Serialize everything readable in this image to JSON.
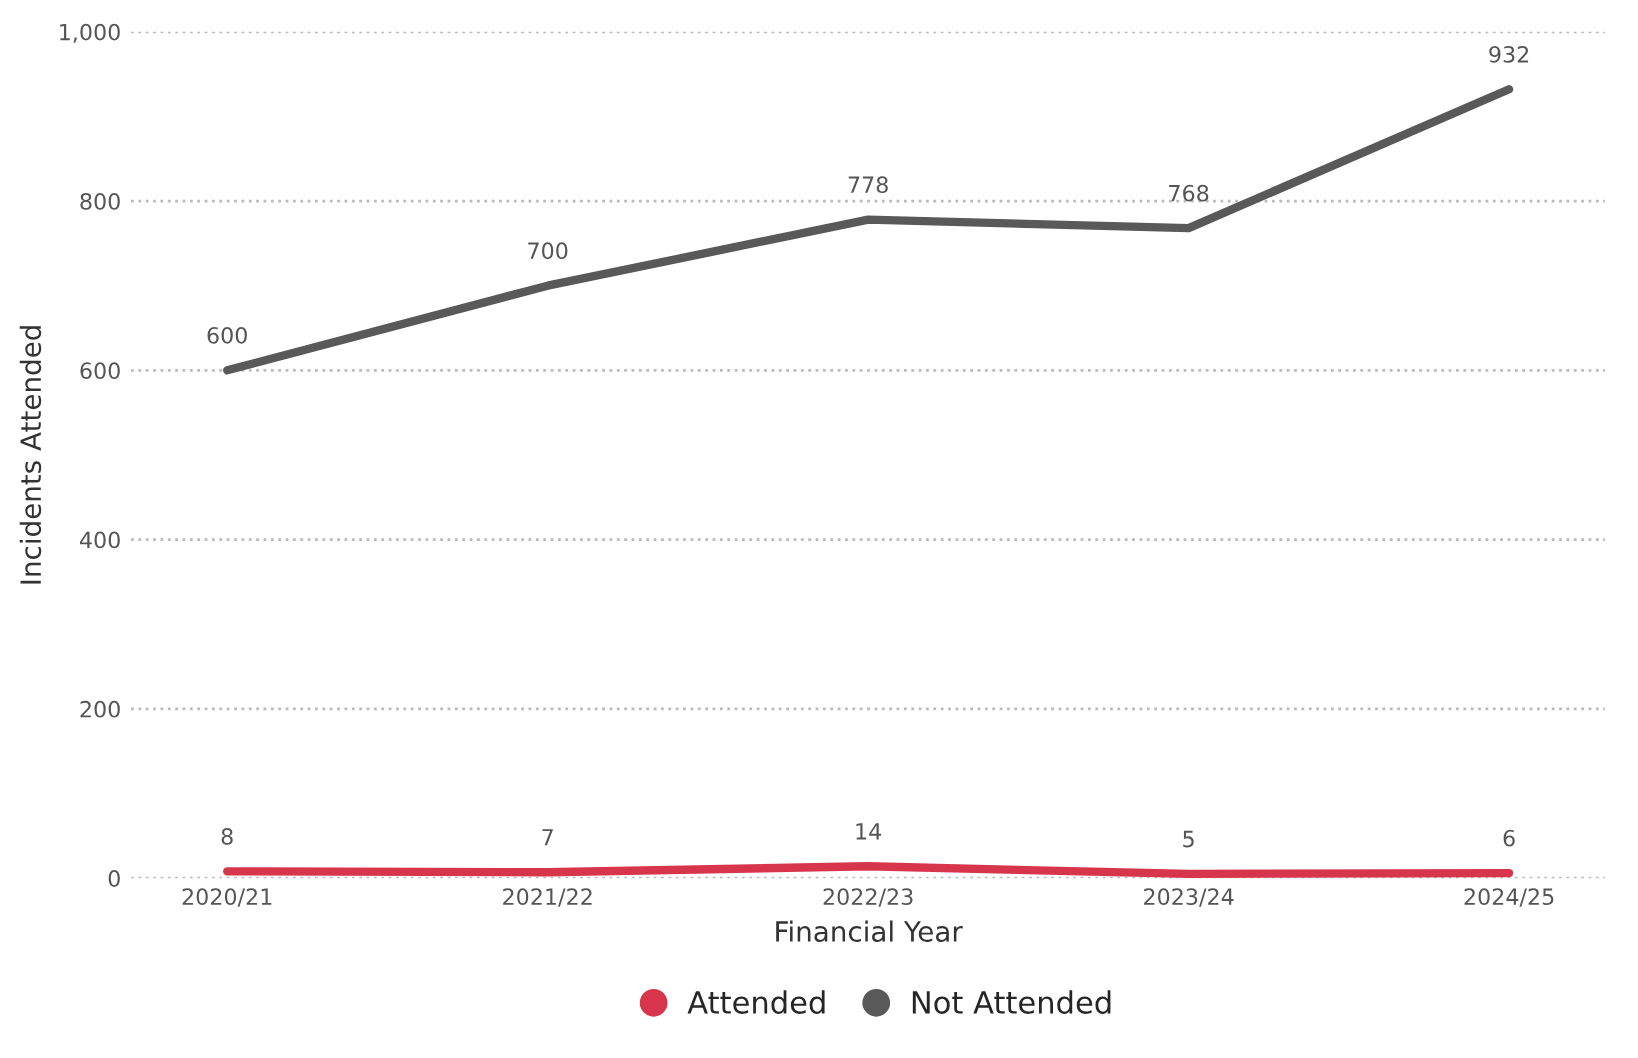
{
  "chart_data": {
    "type": "line",
    "xlabel": "Financial Year",
    "ylabel": "Incidents Attended",
    "categories": [
      "2020/21",
      "2021/22",
      "2022/23",
      "2023/24",
      "2024/25"
    ],
    "series": [
      {
        "name": "Attended",
        "color": "#d7354b",
        "values": [
          8,
          7,
          14,
          5,
          6
        ]
      },
      {
        "name": "Not Attended",
        "color": "#595959",
        "values": [
          600,
          700,
          778,
          768,
          932
        ]
      }
    ],
    "ylim": [
      0,
      1000
    ],
    "yticks": [
      0,
      200,
      400,
      600,
      800,
      {
        "value": 1000,
        "label": "1,000"
      }
    ],
    "grid": "y",
    "legend": "bottom",
    "data_labels": true,
    "line_style": "solid"
  }
}
